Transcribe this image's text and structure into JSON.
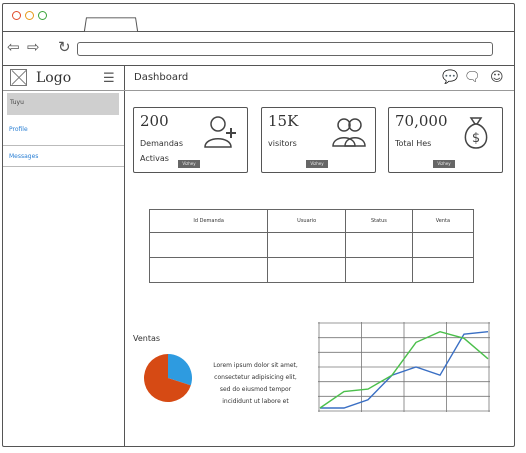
{
  "sidebar": {
    "logo": "Logo",
    "items": [
      {
        "label": "Tuyu",
        "active": true
      },
      {
        "label": "Profile",
        "active": false
      },
      {
        "label": "Messages",
        "active": false
      }
    ]
  },
  "header": {
    "title": "Dashboard"
  },
  "cards": [
    {
      "value": "200",
      "label": "Demandas Activas",
      "button": "Vizhey",
      "icon": "user-add-icon"
    },
    {
      "value": "15K",
      "label": "visitors",
      "button": "Vizhey",
      "icon": "users-icon"
    },
    {
      "value": "70,000",
      "label": "Total Hes",
      "button": "Vizhey",
      "icon": "money-bag-icon"
    }
  ],
  "table": {
    "headers": [
      "Id Demanda",
      "Usuario",
      "Status",
      "Venta"
    ],
    "rows": [
      [
        "",
        "",
        "",
        ""
      ],
      [
        "",
        "",
        "",
        ""
      ]
    ]
  },
  "sales": {
    "label": "Ventas",
    "text": "Lorem ipsum dolor sit amet, consectetur adipisicing elit, sed do eiusmod tempor incididunt ut labore et"
  },
  "chart_data": [
    {
      "type": "pie",
      "values": [
        70,
        30
      ],
      "colors": [
        "#d64a14",
        "#2e9be0"
      ]
    },
    {
      "type": "line",
      "x": [
        0,
        1,
        2,
        3,
        4,
        5,
        6,
        7
      ],
      "series": [
        {
          "values": [
            0,
            0,
            1,
            4,
            5,
            4,
            9,
            9.3
          ],
          "color": "#3a6fc4"
        },
        {
          "values": [
            0,
            2,
            2.3,
            4,
            8,
            9.3,
            8.5,
            6
          ],
          "color": "#4bbf4b"
        }
      ],
      "ylim": [
        0,
        10
      ],
      "grid": true
    }
  ],
  "colors": {
    "link": "#2a7fd4",
    "dot_red": "#e04a2a",
    "dot_orange": "#e69a1a",
    "dot_green": "#3aa43a"
  }
}
